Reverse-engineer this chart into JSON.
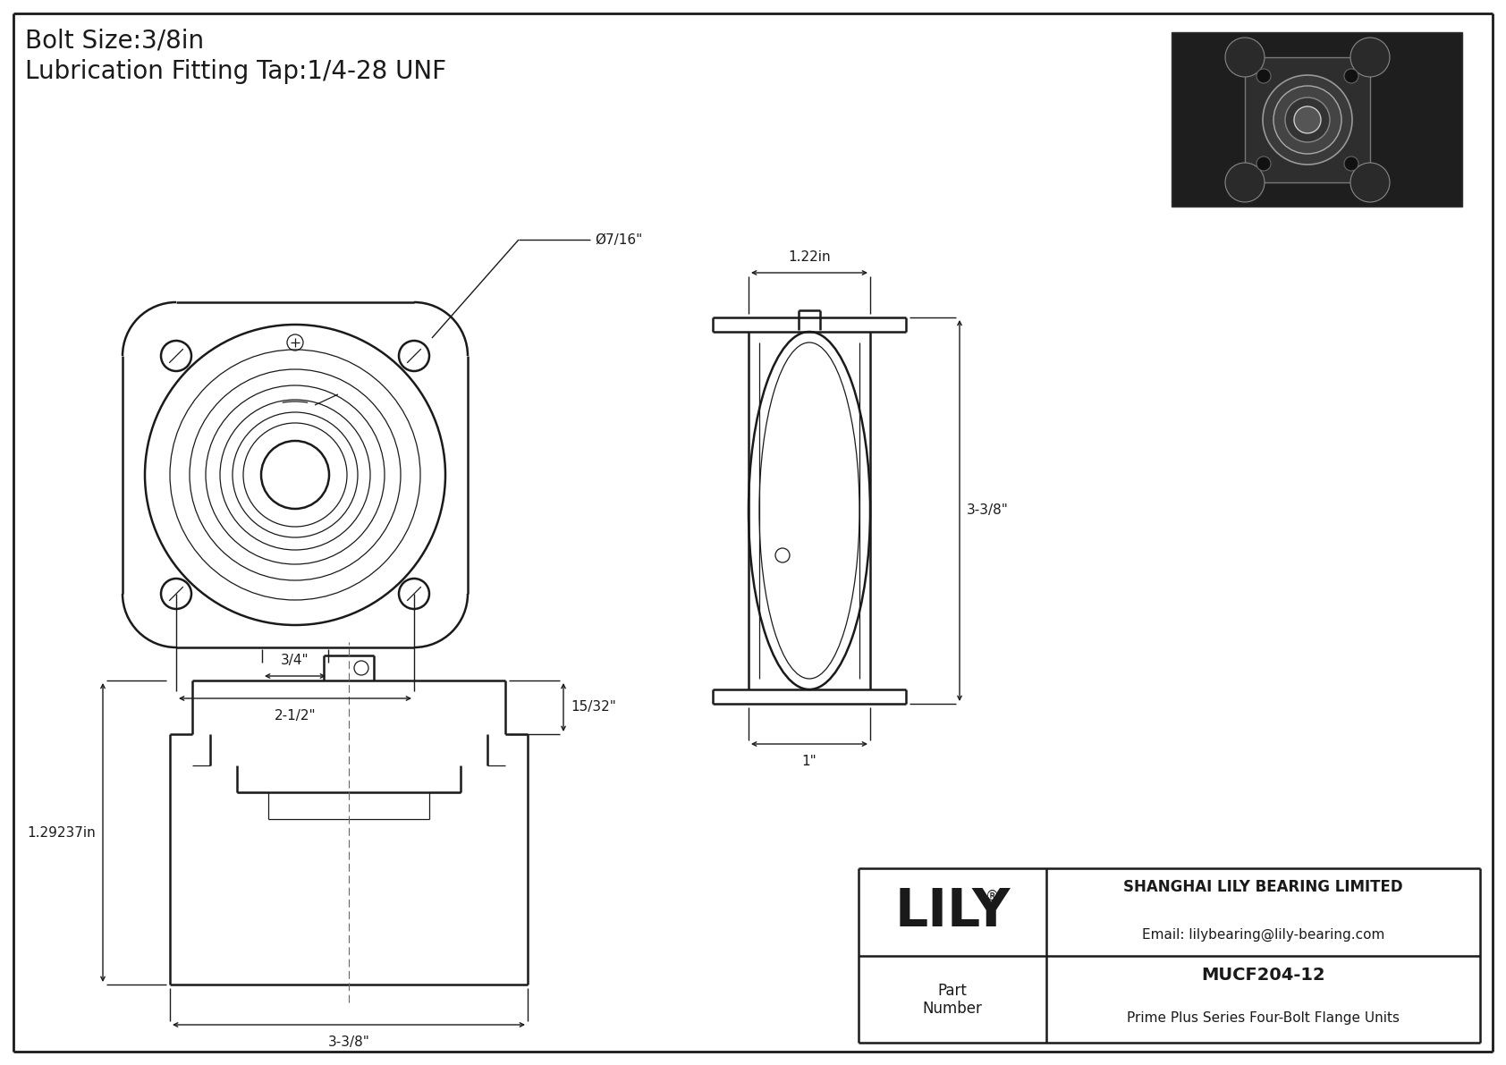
{
  "bg_color": "#ffffff",
  "line_color": "#1a1a1a",
  "title_line1": "Bolt Size:3/8in",
  "title_line2": "Lubrication Fitting Tap:1/4-28 UNF",
  "company": "SHANGHAI LILY BEARING LIMITED",
  "email": "Email: lilybearing@lily-bearing.com",
  "part_label": "Part\nNumber",
  "part_number": "MUCF204-12",
  "part_desc": "Prime Plus Series Four-Bolt Flange Units",
  "lily_text": "LILY",
  "dim_bolt_hole": "Ø7/16\"",
  "dim_3_4": "3/4\"",
  "dim_2_5": "2-1/2\"",
  "dim_1_22": "1.22in",
  "dim_3_38": "3-3/8\"",
  "dim_1": "1\"",
  "dim_15_32": "15/32\"",
  "dim_1_29": "1.29237in"
}
